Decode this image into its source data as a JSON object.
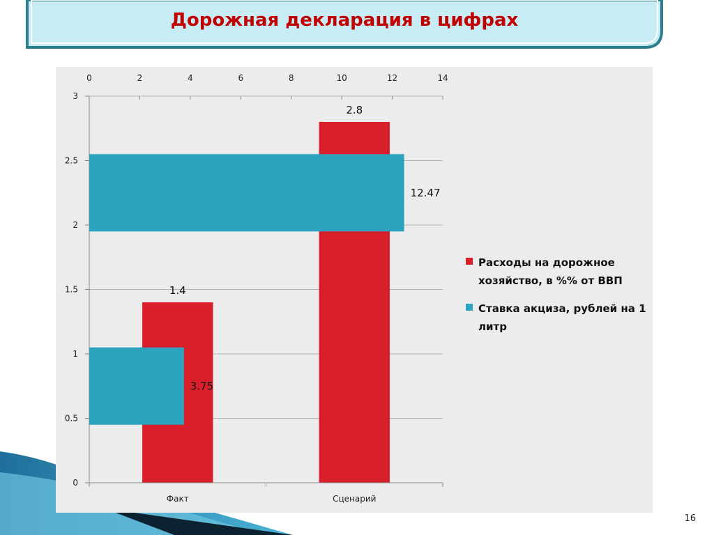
{
  "slide": {
    "title": "Дорожная декларация в цифрах",
    "page_number": "16"
  },
  "colors": {
    "title_text": "#c00000",
    "banner_fill": "#c8ecf3",
    "banner_border": "#2a7e8e",
    "series_red": "#d9202a",
    "series_teal": "#2ea3bf",
    "chart_background": "#ececec"
  },
  "chart_data": {
    "type": "bar",
    "categories": [
      "Факт",
      "Сценарий"
    ],
    "series": [
      {
        "name": "Расходы на дорожное хозяйство, в %% от ВВП",
        "orientation": "vertical",
        "axis": "primary-left",
        "values": [
          1.4,
          2.8
        ],
        "data_labels": [
          "1.4",
          "2.8"
        ],
        "color": "#d9202a"
      },
      {
        "name": "Ставка акциза, рублей на 1 литр",
        "orientation": "horizontal",
        "axis": "secondary-top",
        "values": [
          3.75,
          12.47
        ],
        "data_labels": [
          "3.75",
          "12.47"
        ],
        "y_center": [
          0.75,
          2.25
        ],
        "color": "#2ea3bf"
      }
    ],
    "y_axis": {
      "ylim": [
        0,
        3
      ],
      "ticks": [
        0,
        0.5,
        1,
        1.5,
        2,
        2.5,
        3
      ],
      "tick_labels": [
        "0",
        "0.5",
        "1",
        "1.5",
        "2",
        "2.5",
        "3"
      ]
    },
    "x_top_axis": {
      "xlim": [
        0,
        14
      ],
      "ticks": [
        0,
        2,
        4,
        6,
        8,
        10,
        12,
        14
      ],
      "tick_labels": [
        "0",
        "2",
        "4",
        "6",
        "8",
        "10",
        "12",
        "14"
      ]
    },
    "grid": true,
    "legend_position": "right"
  }
}
